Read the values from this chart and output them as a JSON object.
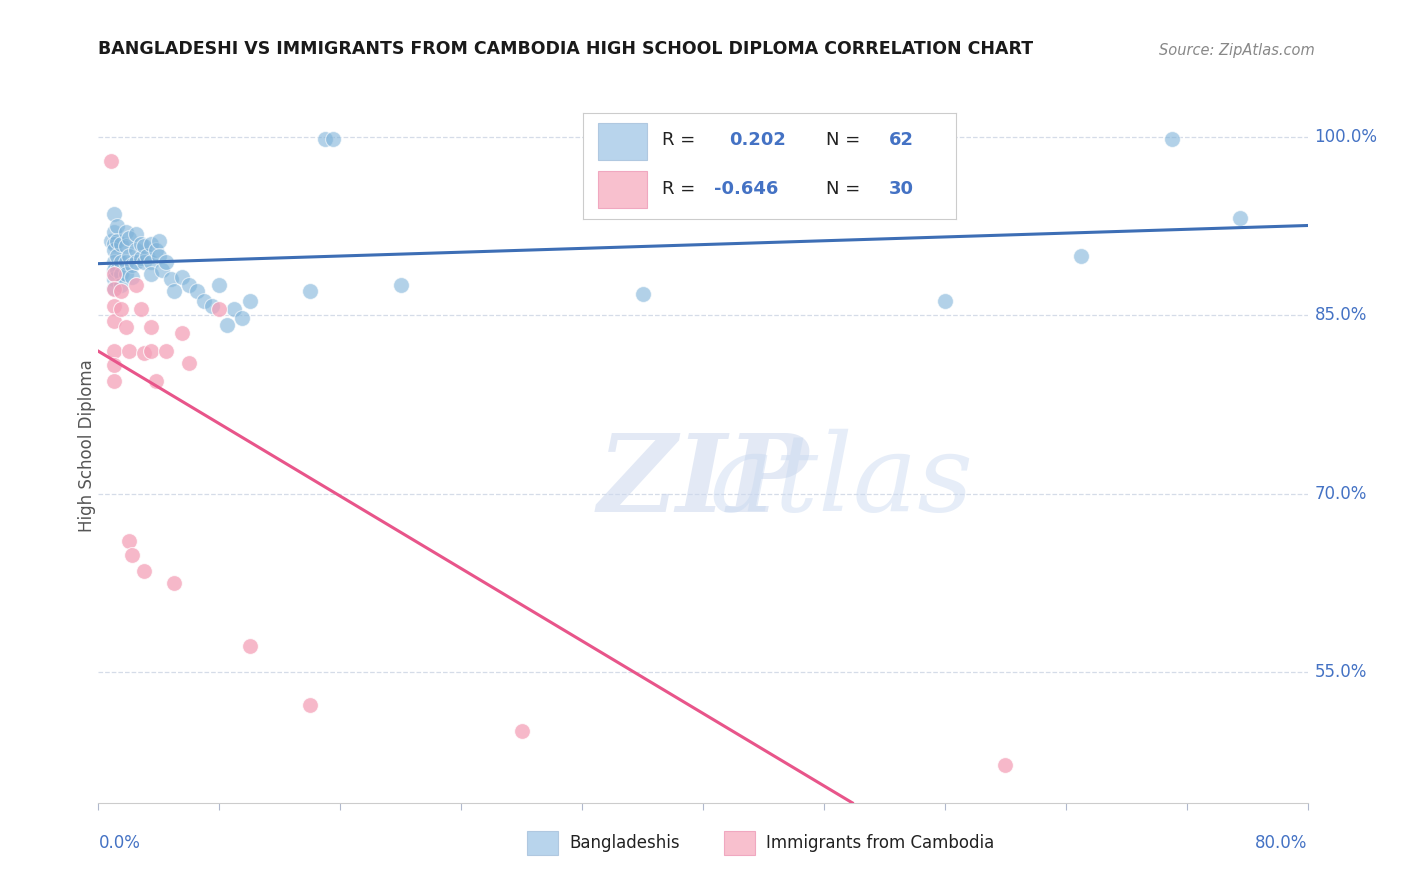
{
  "title": "BANGLADESHI VS IMMIGRANTS FROM CAMBODIA HIGH SCHOOL DIPLOMA CORRELATION CHART",
  "source": "Source: ZipAtlas.com",
  "ylabel": "High School Diploma",
  "ytick_values": [
    0.55,
    0.7,
    0.85,
    1.0
  ],
  "xmin": 0.0,
  "xmax": 0.8,
  "ymin": 0.44,
  "ymax": 1.04,
  "r_blue": 0.202,
  "n_blue": 62,
  "r_pink": -0.646,
  "n_pink": 30,
  "blue_scatter": [
    [
      0.008,
      0.912
    ],
    [
      0.01,
      0.935
    ],
    [
      0.01,
      0.92
    ],
    [
      0.01,
      0.91
    ],
    [
      0.01,
      0.905
    ],
    [
      0.01,
      0.895
    ],
    [
      0.01,
      0.888
    ],
    [
      0.01,
      0.88
    ],
    [
      0.01,
      0.873
    ],
    [
      0.012,
      0.925
    ],
    [
      0.012,
      0.912
    ],
    [
      0.012,
      0.9
    ],
    [
      0.012,
      0.888
    ],
    [
      0.015,
      0.91
    ],
    [
      0.015,
      0.895
    ],
    [
      0.015,
      0.885
    ],
    [
      0.015,
      0.875
    ],
    [
      0.018,
      0.92
    ],
    [
      0.018,
      0.908
    ],
    [
      0.018,
      0.895
    ],
    [
      0.018,
      0.885
    ],
    [
      0.02,
      0.915
    ],
    [
      0.02,
      0.9
    ],
    [
      0.022,
      0.892
    ],
    [
      0.022,
      0.882
    ],
    [
      0.025,
      0.918
    ],
    [
      0.025,
      0.905
    ],
    [
      0.025,
      0.895
    ],
    [
      0.028,
      0.91
    ],
    [
      0.028,
      0.898
    ],
    [
      0.03,
      0.908
    ],
    [
      0.03,
      0.895
    ],
    [
      0.032,
      0.9
    ],
    [
      0.035,
      0.91
    ],
    [
      0.035,
      0.895
    ],
    [
      0.035,
      0.885
    ],
    [
      0.038,
      0.905
    ],
    [
      0.04,
      0.912
    ],
    [
      0.04,
      0.9
    ],
    [
      0.042,
      0.888
    ],
    [
      0.045,
      0.895
    ],
    [
      0.048,
      0.88
    ],
    [
      0.05,
      0.87
    ],
    [
      0.055,
      0.882
    ],
    [
      0.06,
      0.875
    ],
    [
      0.065,
      0.87
    ],
    [
      0.07,
      0.862
    ],
    [
      0.075,
      0.858
    ],
    [
      0.08,
      0.875
    ],
    [
      0.085,
      0.842
    ],
    [
      0.09,
      0.855
    ],
    [
      0.095,
      0.848
    ],
    [
      0.1,
      0.862
    ],
    [
      0.14,
      0.87
    ],
    [
      0.15,
      0.998
    ],
    [
      0.155,
      0.998
    ],
    [
      0.2,
      0.875
    ],
    [
      0.36,
      0.868
    ],
    [
      0.56,
      0.862
    ],
    [
      0.65,
      0.9
    ],
    [
      0.71,
      0.998
    ],
    [
      0.755,
      0.932
    ]
  ],
  "pink_scatter": [
    [
      0.008,
      0.98
    ],
    [
      0.01,
      0.885
    ],
    [
      0.01,
      0.872
    ],
    [
      0.01,
      0.858
    ],
    [
      0.01,
      0.845
    ],
    [
      0.01,
      0.82
    ],
    [
      0.01,
      0.808
    ],
    [
      0.01,
      0.795
    ],
    [
      0.015,
      0.87
    ],
    [
      0.015,
      0.855
    ],
    [
      0.018,
      0.84
    ],
    [
      0.02,
      0.82
    ],
    [
      0.02,
      0.66
    ],
    [
      0.022,
      0.648
    ],
    [
      0.025,
      0.875
    ],
    [
      0.028,
      0.855
    ],
    [
      0.03,
      0.818
    ],
    [
      0.03,
      0.635
    ],
    [
      0.035,
      0.84
    ],
    [
      0.035,
      0.82
    ],
    [
      0.038,
      0.795
    ],
    [
      0.045,
      0.82
    ],
    [
      0.05,
      0.625
    ],
    [
      0.055,
      0.835
    ],
    [
      0.06,
      0.81
    ],
    [
      0.08,
      0.855
    ],
    [
      0.1,
      0.572
    ],
    [
      0.14,
      0.522
    ],
    [
      0.28,
      0.5
    ],
    [
      0.6,
      0.472
    ]
  ],
  "title_color": "#1a1a1a",
  "source_color": "#888888",
  "blue_dot_color": "#7fb3d9",
  "pink_dot_color": "#f4a0b8",
  "blue_line_color": "#3d6eb5",
  "pink_line_color": "#e8558a",
  "grid_color": "#d5dce8",
  "background_color": "#ffffff",
  "legend_blue_fill": "#b8d4ec",
  "legend_pink_fill": "#f8c0ce",
  "legend_r_color": "#4472c4",
  "legend_n_color": "#4472c4",
  "bottom_label_color": "#4472c4",
  "xtick_color": "#b0b8cc"
}
